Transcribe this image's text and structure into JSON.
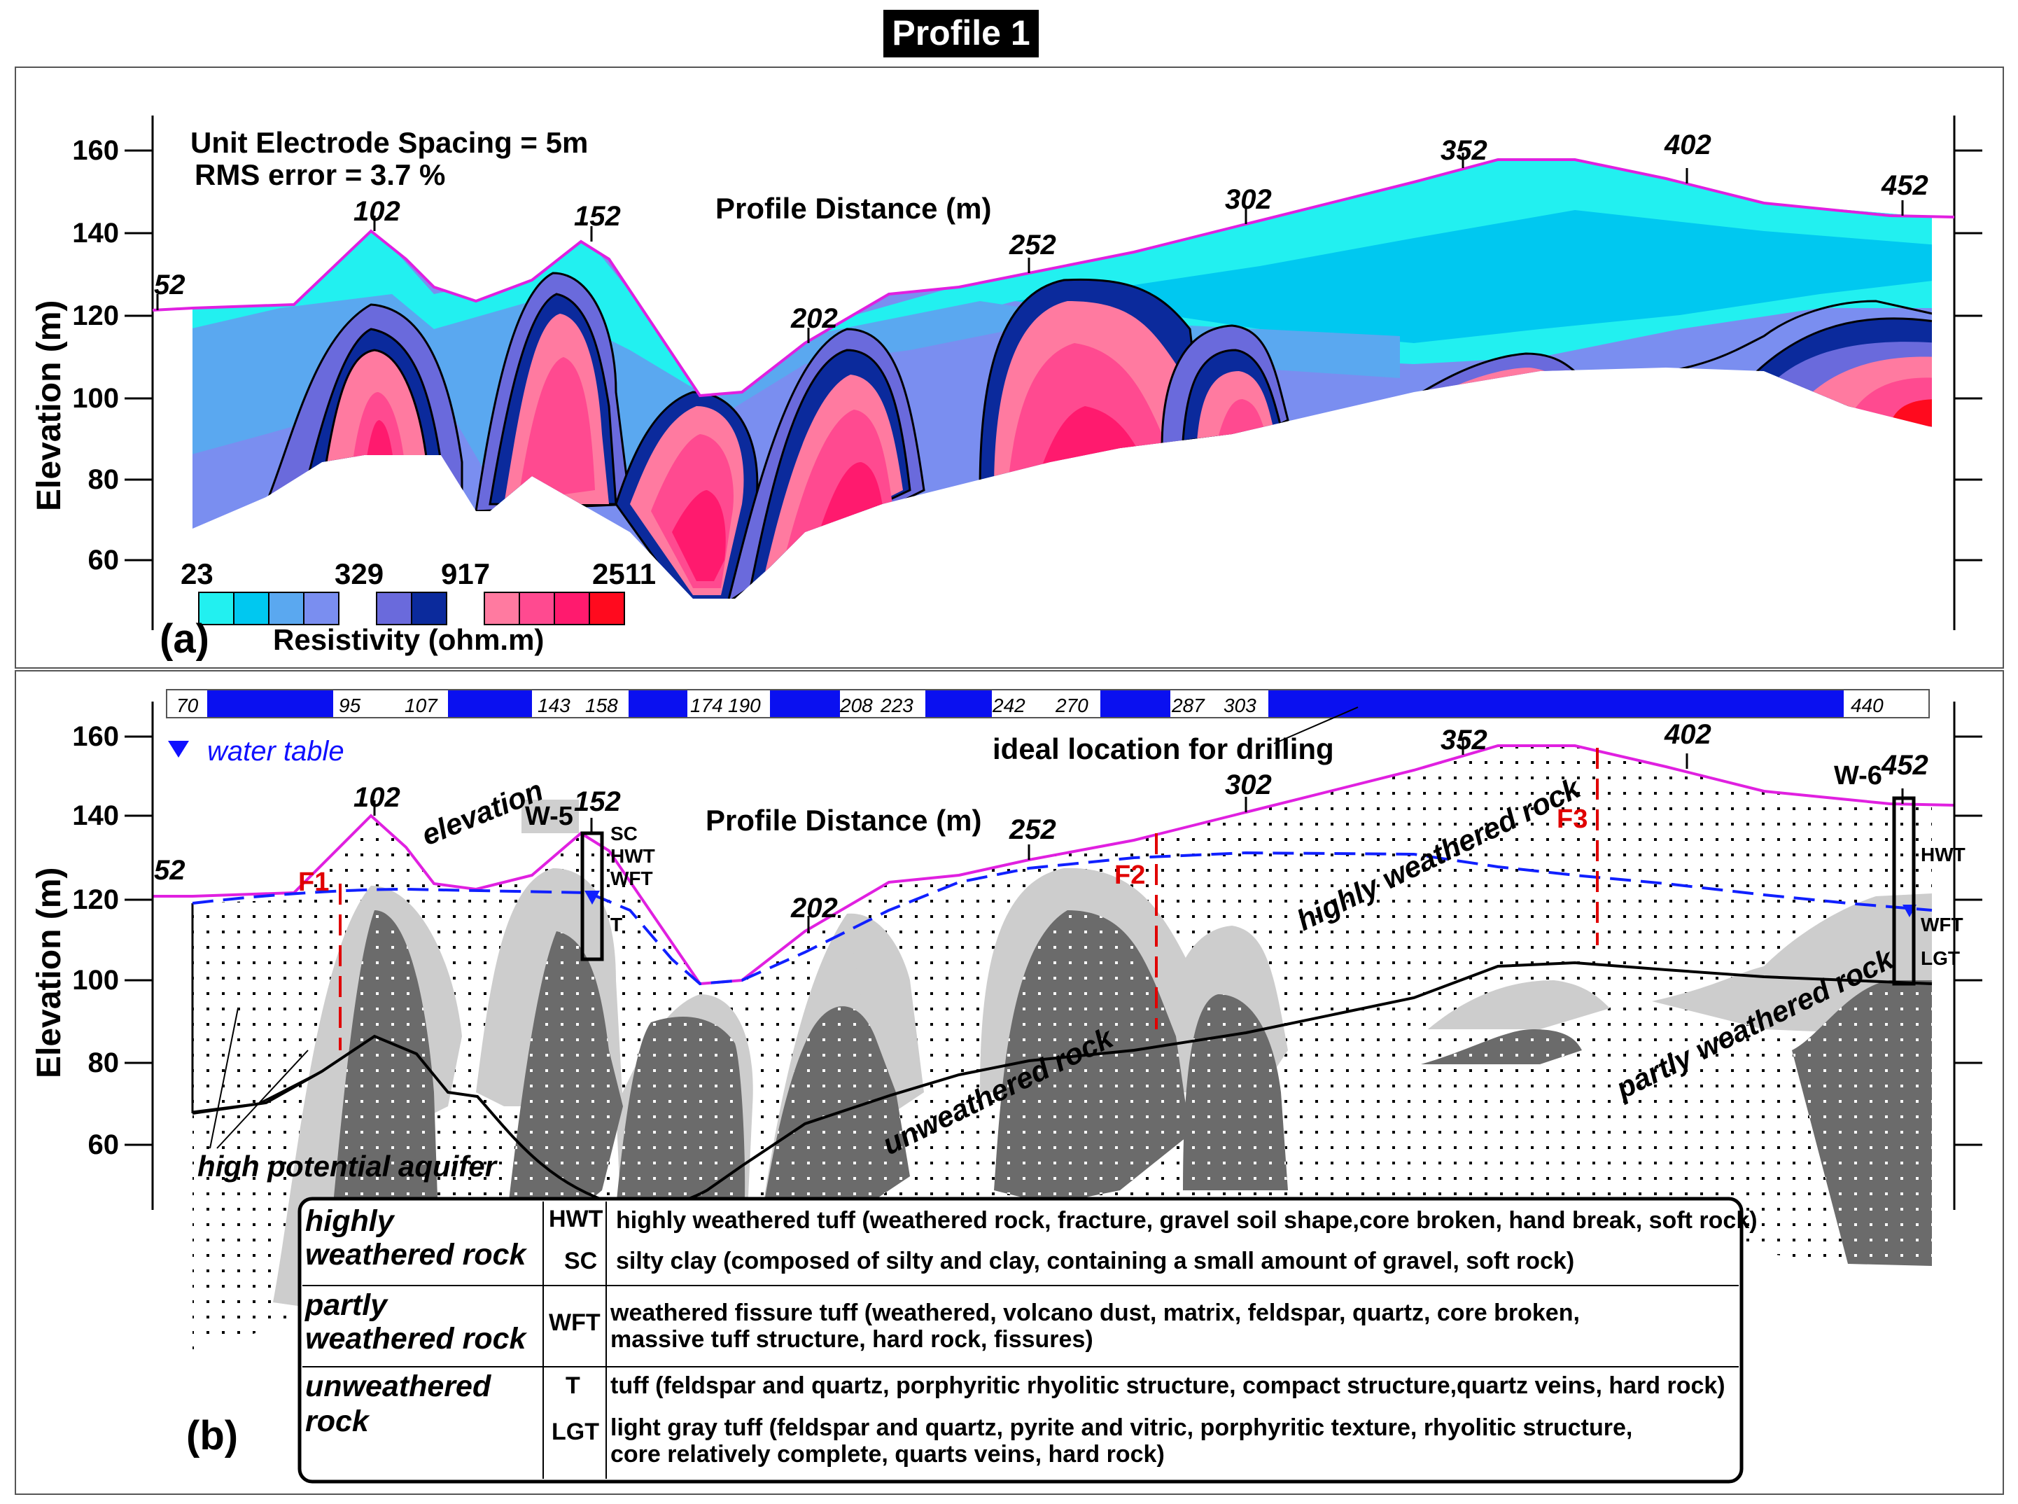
{
  "title": "Profile 1",
  "panel_a": {
    "letter": "(a)",
    "info_line1": "Unit Electrode Spacing = 5m",
    "info_line2": "RMS error = 3.7 %",
    "x_title": "Profile Distance (m)",
    "y_title": "Elevation (m)",
    "y_ticks": [
      "160",
      "140",
      "120",
      "100",
      "80",
      "60"
    ],
    "distance_marks": [
      "52",
      "102",
      "152",
      "202",
      "252",
      "302",
      "352",
      "402",
      "452"
    ],
    "colorbar": {
      "labels": [
        "23",
        "329",
        "917",
        "2511"
      ],
      "title": "Resistivity (ohm.m)",
      "colors": [
        "#22f0f0",
        "#00c8f0",
        "#5aa8f0",
        "#7a8ef0",
        "#6a6adc",
        "#0b2a9c",
        "#ff7aa0",
        "#ff4a90",
        "#ff1a6e",
        "#ff0a1e"
      ]
    }
  },
  "panel_b": {
    "letter": "(b)",
    "x_title": "Profile Distance (m)",
    "y_title": "Elevation (m)",
    "y_ticks": [
      "160",
      "140",
      "120",
      "100",
      "80",
      "60"
    ],
    "distance_marks": [
      "52",
      "102",
      "152",
      "202",
      "252",
      "302",
      "352",
      "402",
      "452"
    ],
    "drill_bar_labels": [
      "70",
      "95",
      "107",
      "143",
      "158",
      "174",
      "190",
      "208",
      "223",
      "242",
      "270",
      "287",
      "303",
      "440"
    ],
    "water_table_label": "water table",
    "drilling_note": "ideal location for drilling",
    "annotations": {
      "elevation": "elevation",
      "highly_weathered": "highly weathered rock",
      "partly_weathered": "partly weathered rock",
      "unweathered": "unweathered rock",
      "aquifer": "high potential aquifer"
    },
    "faults": [
      "F1",
      "F2",
      "F3"
    ],
    "wells": [
      {
        "name": "W-5",
        "layers": [
          "SC",
          "HWT",
          "WFT",
          "T"
        ]
      },
      {
        "name": "W-6",
        "layers": [
          "HWT",
          "WFT",
          "LGT"
        ]
      }
    ]
  },
  "legend": {
    "groups": [
      {
        "name_line1": "highly",
        "name_line2": "weathered rock",
        "rows": [
          {
            "code": "HWT",
            "text": "highly weathered tuff (weathered rock, fracture, gravel soil shape,core broken, hand break, soft rock)"
          },
          {
            "code": "SC",
            "text": "silty clay (composed of silty and clay, containing a small amount of gravel, soft rock)"
          }
        ]
      },
      {
        "name_line1": "partly",
        "name_line2": "weathered rock",
        "rows": [
          {
            "code": "WFT",
            "text": "weathered fissure tuff (weathered, volcano dust, matrix, feldspar, quartz, core broken,",
            "text2": "massive tuff structure, hard rock, fissures)"
          }
        ]
      },
      {
        "name_line1": "unweathered",
        "name_line2": "rock",
        "rows": [
          {
            "code": "T",
            "text": "tuff (feldspar and quartz, porphyritic rhyolitic structure, compact structure,quartz veins, hard rock)"
          },
          {
            "code": "LGT",
            "text": "light gray tuff (feldspar and quartz, pyrite and vitric, porphyritic texture, rhyolitic structure,",
            "text2": "core relatively complete, quarts veins, hard rock)"
          }
        ]
      }
    ]
  }
}
